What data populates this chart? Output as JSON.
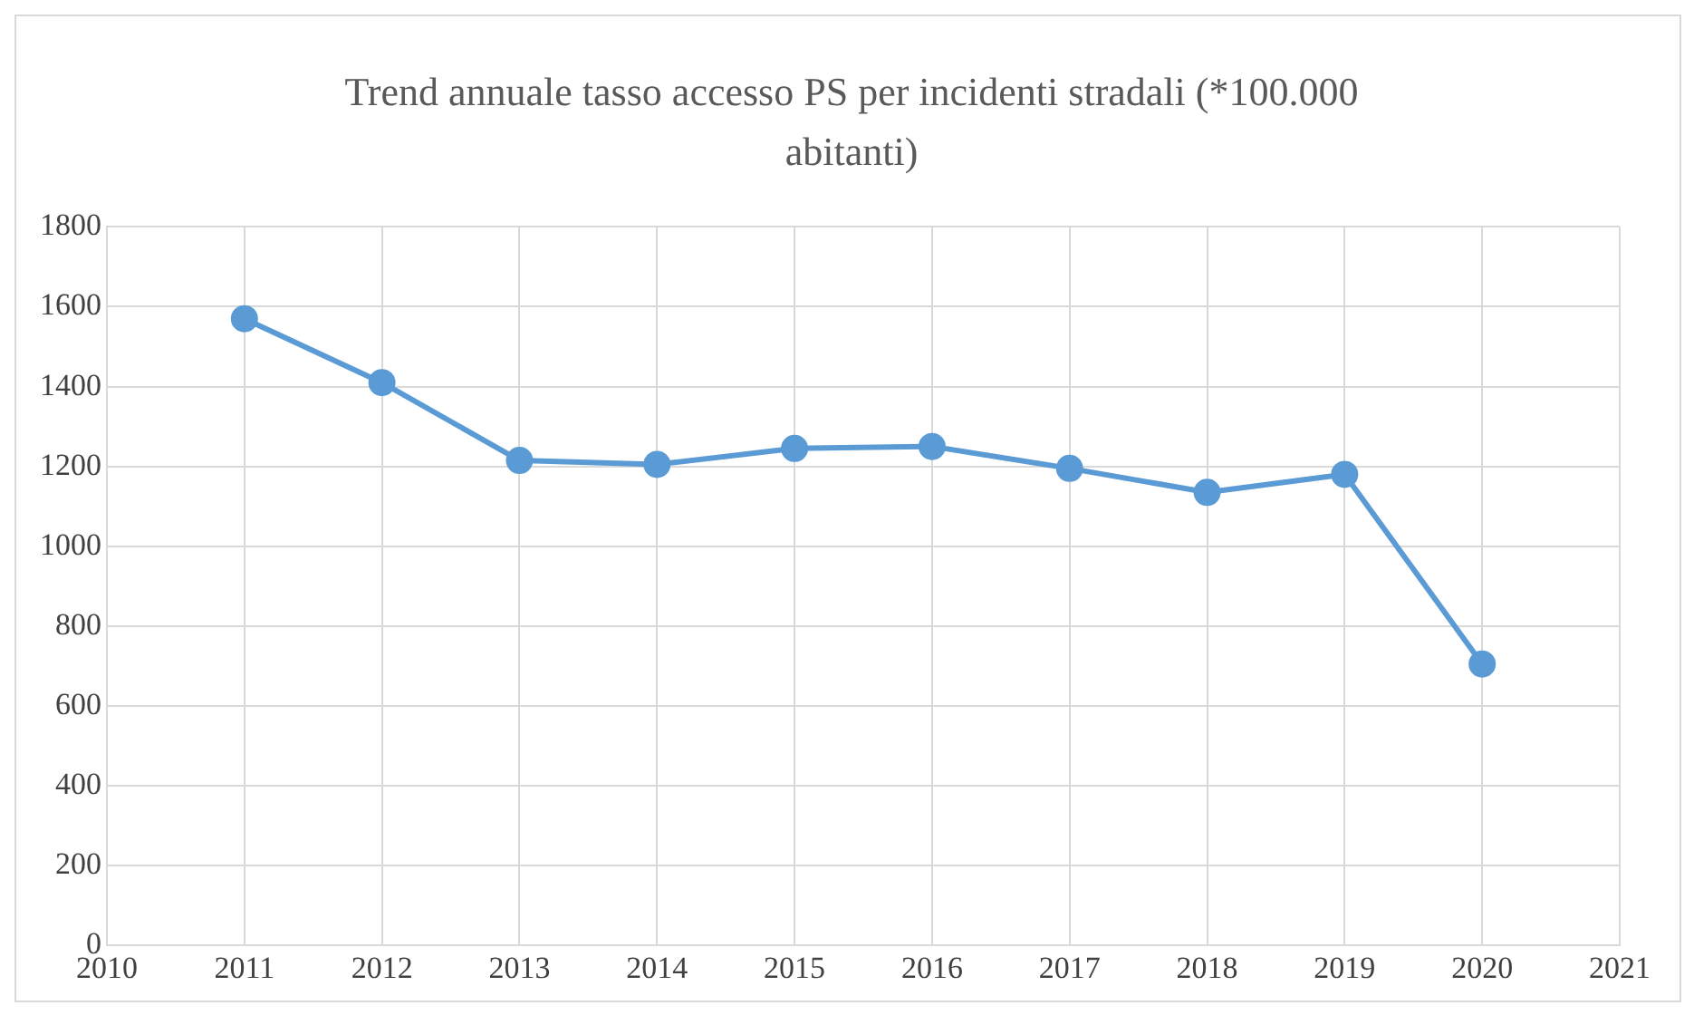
{
  "chart_data": {
    "type": "line",
    "title": "Trend annuale tasso accesso PS per incidenti stradali (*100.000 abitanti)",
    "x": [
      2011,
      2012,
      2013,
      2014,
      2015,
      2016,
      2017,
      2018,
      2019,
      2020
    ],
    "series": [
      {
        "color": "#5b9bd5",
        "values": [
          1570,
          1410,
          1215,
          1205,
          1245,
          1250,
          1195,
          1135,
          1180,
          705
        ]
      }
    ],
    "xlim": [
      2010,
      2021
    ],
    "xticks": [
      2010,
      2011,
      2012,
      2013,
      2014,
      2015,
      2016,
      2017,
      2018,
      2019,
      2020,
      2021
    ],
    "ylim": [
      0,
      1800
    ],
    "yticks": [
      0,
      200,
      400,
      600,
      800,
      1000,
      1200,
      1400,
      1600,
      1800
    ],
    "grid": true,
    "legend": false,
    "marker": "circle",
    "line_style": "solid"
  }
}
